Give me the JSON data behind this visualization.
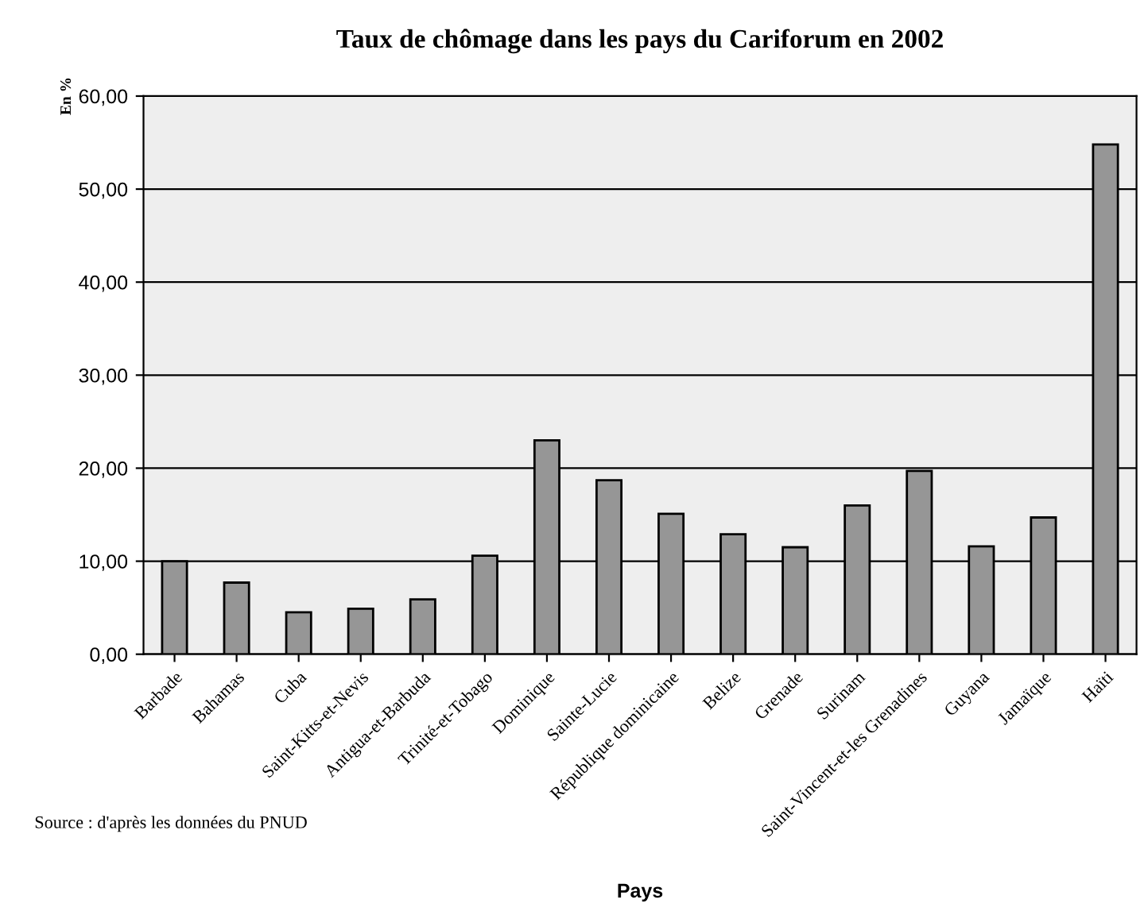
{
  "chart_data": {
    "type": "bar",
    "title": "Taux de chômage dans les pays du Cariforum en 2002",
    "xlabel": "Pays",
    "ylabel": "En %",
    "categories": [
      "Barbade",
      "Bahamas",
      "Cuba",
      "Saint-Kitts-et-Nevis",
      "Antigua-et-Barbuda",
      "Trinité-et-Tobago",
      "Dominique",
      "Sainte-Lucie",
      "République dominicaine",
      "Belize",
      "Grenade",
      "Surinam",
      "Saint-Vincent-et-les Grenadines",
      "Guyana",
      "Jamaïque",
      "Haïti"
    ],
    "values": [
      10.0,
      7.7,
      4.5,
      4.9,
      5.9,
      10.6,
      23.0,
      18.7,
      15.1,
      12.9,
      11.5,
      16.0,
      19.7,
      11.6,
      14.7,
      54.8
    ],
    "color": "#969696",
    "ylim": [
      0,
      60
    ],
    "yticks": [
      {
        "value": 0,
        "label": "0,00"
      },
      {
        "value": 10,
        "label": "10,00"
      },
      {
        "value": 20,
        "label": "20,00"
      },
      {
        "value": 30,
        "label": "30,00"
      },
      {
        "value": 40,
        "label": "40,00"
      },
      {
        "value": 50,
        "label": "50,00"
      },
      {
        "value": 60,
        "label": "60,00"
      }
    ],
    "grid": "y",
    "annotations": [
      "Source : d'après les données du PNUD"
    ]
  }
}
